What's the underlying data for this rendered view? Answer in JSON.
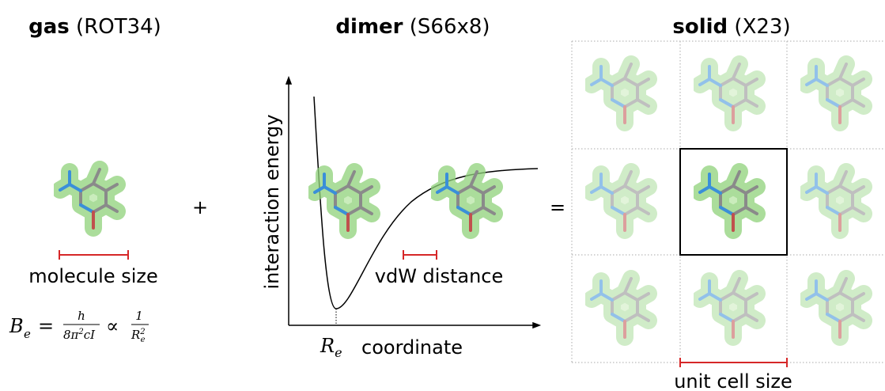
{
  "panels": [
    {
      "title": "gas",
      "subtitle": "(ROT34)",
      "label": "molecule size"
    },
    {
      "title": "dimer",
      "subtitle": "(S66x8)",
      "y_axis_label": "interaction energy",
      "x_axis_label": "coordinate",
      "minimum_label": {
        "symbol": "R",
        "subscript": "e"
      },
      "label": "vdW distance"
    },
    {
      "title": "solid",
      "subtitle": "(X23)",
      "label": "unit cell size"
    }
  ],
  "operators": [
    "+",
    "="
  ],
  "formula": {
    "lhs": {
      "symbol": "B",
      "subscript": "e"
    },
    "equals": "=",
    "fraction1": {
      "numerator": "h",
      "denominator": [
        "8π",
        "2",
        "cI"
      ]
    },
    "proportional": "∝",
    "fraction2": {
      "numerator": "1",
      "denominator": {
        "symbol": "R",
        "subscript": "e",
        "superscript": "2"
      }
    }
  }
}
